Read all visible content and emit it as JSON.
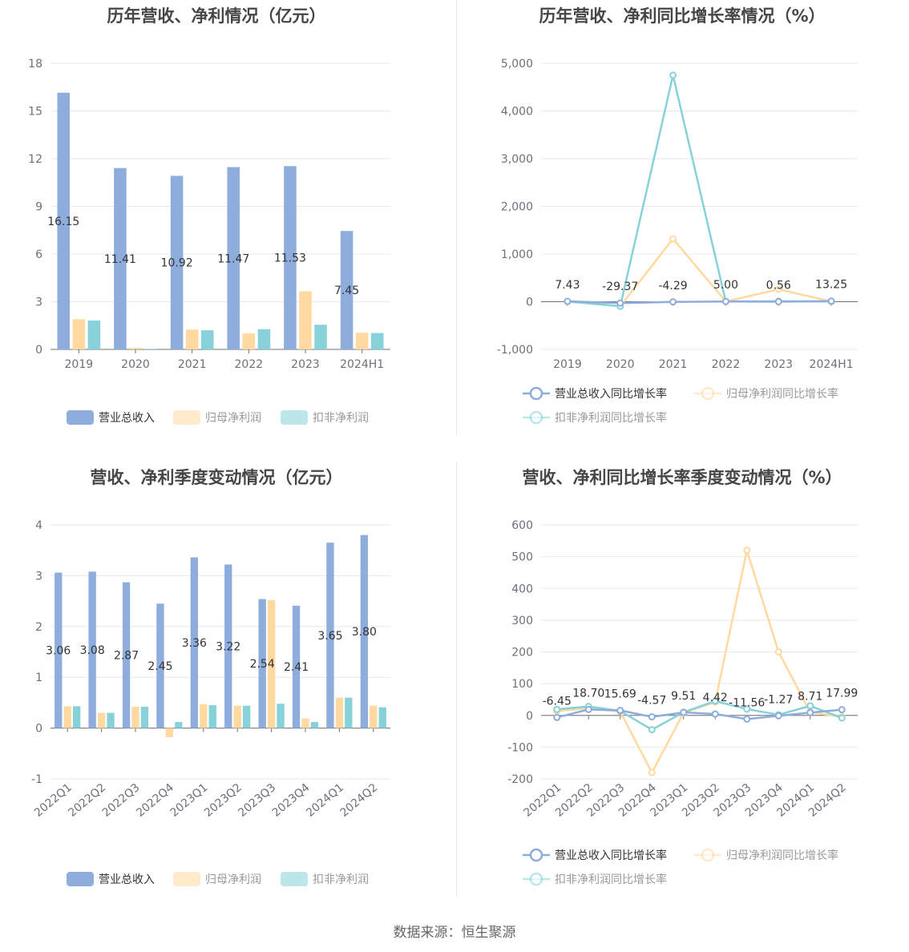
{
  "colors": {
    "revenue": "#8eacdc",
    "net_profit": "#ffd9a0",
    "deducted_profit": "#86d2d8",
    "revenue_legend_dim": "#8eacdc",
    "grid": "#e6e9f0",
    "axis": "#6e7079"
  },
  "source": "数据来源：恒生聚源",
  "chart_data": [
    {
      "type": "bar",
      "title": "历年营收、净利情况（亿元）",
      "categories": [
        "2019",
        "2020",
        "2021",
        "2022",
        "2023",
        "2024H1"
      ],
      "ylim": [
        0,
        18
      ],
      "yticks": [
        0,
        3,
        6,
        9,
        12,
        15,
        18
      ],
      "grid": true,
      "legend_position": "bottom",
      "series": [
        {
          "name": "营业总收入",
          "values": [
            16.15,
            11.41,
            10.92,
            11.47,
            11.53,
            7.45
          ],
          "labels": [
            "16.15",
            "11.41",
            "10.92",
            "11.47",
            "11.53",
            "7.45"
          ]
        },
        {
          "name": "归母净利润",
          "values": [
            1.9,
            0.1,
            1.25,
            1.0,
            3.65,
            1.05
          ]
        },
        {
          "name": "扣非净利润",
          "values": [
            1.82,
            0.03,
            1.2,
            1.27,
            1.55,
            1.03
          ]
        }
      ]
    },
    {
      "type": "line",
      "title": "历年营收、净利同比增长率情况（%）",
      "categories": [
        "2019",
        "2020",
        "2021",
        "2022",
        "2023",
        "2024H1"
      ],
      "ylim": [
        -1000,
        5000
      ],
      "yticks": [
        -1000,
        0,
        1000,
        2000,
        3000,
        4000,
        5000
      ],
      "ytick_labels": [
        "-1,000",
        "0",
        "1,000",
        "2,000",
        "3,000",
        "4,000",
        "5,000"
      ],
      "grid": true,
      "legend_position": "bottom",
      "series": [
        {
          "name": "营业总收入同比增长率",
          "values": [
            7.43,
            -29.37,
            -4.29,
            5.0,
            0.56,
            13.25
          ],
          "labels": [
            "7.43",
            "-29.37",
            "-4.29",
            "5.00",
            "0.56",
            "13.25"
          ]
        },
        {
          "name": "归母净利润同比增长率",
          "values": [
            5,
            -95,
            1320,
            5,
            260,
            5
          ]
        },
        {
          "name": "扣非净利润同比增长率",
          "values": [
            5,
            -95,
            4750,
            5,
            10,
            5
          ]
        }
      ]
    },
    {
      "type": "bar",
      "title": "营收、净利季度变动情况（亿元）",
      "categories": [
        "2022Q1",
        "2022Q2",
        "2022Q3",
        "2022Q4",
        "2023Q1",
        "2023Q2",
        "2023Q3",
        "2023Q4",
        "2024Q1",
        "2024Q2"
      ],
      "ylim": [
        -1,
        4
      ],
      "yticks": [
        -1,
        0,
        1,
        2,
        3,
        4
      ],
      "grid": true,
      "legend_position": "bottom",
      "series": [
        {
          "name": "营业总收入",
          "values": [
            3.06,
            3.08,
            2.87,
            2.45,
            3.36,
            3.22,
            2.54,
            2.41,
            3.65,
            3.8
          ],
          "labels": [
            "3.06",
            "3.08",
            "2.87",
            "2.45",
            "3.36",
            "3.22",
            "2.54",
            "2.41",
            "3.65",
            "3.80"
          ]
        },
        {
          "name": "归母净利润",
          "values": [
            0.43,
            0.3,
            0.42,
            -0.18,
            0.47,
            0.44,
            2.52,
            0.19,
            0.6,
            0.44
          ]
        },
        {
          "name": "扣非净利润",
          "values": [
            0.43,
            0.3,
            0.42,
            0.12,
            0.45,
            0.44,
            0.48,
            0.12,
            0.6,
            0.41
          ]
        }
      ]
    },
    {
      "type": "line",
      "title": "营收、净利同比增长率季度变动情况（%）",
      "categories": [
        "2022Q1",
        "2022Q2",
        "2022Q3",
        "2022Q4",
        "2023Q1",
        "2023Q2",
        "2023Q3",
        "2023Q4",
        "2024Q1",
        "2024Q2"
      ],
      "ylim": [
        -200,
        600
      ],
      "yticks": [
        -200,
        -100,
        0,
        100,
        200,
        300,
        400,
        500,
        600
      ],
      "grid": true,
      "legend_position": "bottom",
      "series": [
        {
          "name": "营业总收入同比增长率",
          "values": [
            -6.45,
            18.7,
            15.69,
            -4.57,
            9.51,
            4.42,
            -11.56,
            -1.27,
            8.71,
            17.99
          ],
          "labels": [
            "-6.45",
            "18.70",
            "15.69",
            "-4.57",
            "9.51",
            "4.42",
            "-11.56",
            "-1.27",
            "8.71",
            "17.99"
          ]
        },
        {
          "name": "归母净利润同比增长率",
          "values": [
            14,
            22,
            12,
            -180,
            8,
            42,
            520,
            200,
            10,
            -4
          ]
        },
        {
          "name": "扣非净利润同比增长率",
          "values": [
            19,
            28,
            14,
            -45,
            10,
            45,
            20,
            2,
            30,
            -8
          ]
        }
      ]
    }
  ]
}
